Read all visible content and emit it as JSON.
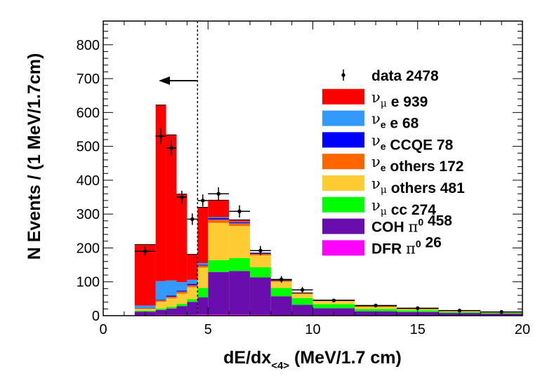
{
  "chart_data": {
    "type": "bar",
    "stacked": true,
    "xlabel_main": "dE/dx",
    "xlabel_sub": "<4>",
    "xlabel_unit": " (MeV/1.7 cm)",
    "ylabel": "N Events / (1 MeV/1.7cm)",
    "xlim": [
      0,
      20
    ],
    "ylim": [
      0,
      870
    ],
    "xticks": [
      0,
      5,
      10,
      15,
      20
    ],
    "yticks": [
      0,
      100,
      200,
      300,
      400,
      500,
      600,
      700,
      800
    ],
    "cut_x": 4.5,
    "bin_edges": [
      1.5,
      2.5,
      3.0,
      3.5,
      4.0,
      4.5,
      5.0,
      6.0,
      7.0,
      8.0,
      9.0,
      10.0,
      12.0,
      14.0,
      16.0,
      18.0,
      20.0
    ],
    "series": [
      {
        "key": "dfr",
        "color": "#ff00ff",
        "values": [
          2,
          3,
          3,
          3,
          3,
          4,
          4,
          4,
          3,
          2,
          2,
          2,
          1,
          1,
          1,
          1
        ]
      },
      {
        "key": "coh",
        "color": "#6a0dad",
        "values": [
          10,
          14,
          18,
          25,
          38,
          50,
          125,
          128,
          110,
          55,
          30,
          20,
          12,
          10,
          7,
          5
        ]
      },
      {
        "key": "numu_cc",
        "color": "#00ff00",
        "values": [
          3,
          4,
          5,
          7,
          8,
          28,
          35,
          38,
          30,
          25,
          20,
          12,
          7,
          5,
          3,
          2
        ]
      },
      {
        "key": "numu_other",
        "color": "#ffcc33",
        "values": [
          5,
          20,
          25,
          30,
          35,
          60,
          110,
          95,
          35,
          18,
          12,
          9,
          6,
          4,
          3,
          2
        ]
      },
      {
        "key": "nue_other",
        "color": "#ff6600",
        "values": [
          2,
          4,
          5,
          6,
          6,
          6,
          10,
          8,
          4,
          3,
          2,
          2,
          2,
          1,
          1,
          1
        ]
      },
      {
        "key": "nue_ccqe",
        "color": "#0000ff",
        "values": [
          1,
          2,
          3,
          3,
          4,
          2,
          4,
          3,
          2,
          1,
          1,
          1,
          1,
          0,
          0,
          0
        ]
      },
      {
        "key": "nue_e",
        "color": "#3399ff",
        "values": [
          7,
          55,
          45,
          25,
          12,
          5,
          3,
          2,
          1,
          1,
          0,
          0,
          0,
          0,
          0,
          0
        ]
      },
      {
        "key": "numu_e",
        "color": "#ff0000",
        "values": [
          180,
          520,
          430,
          260,
          75,
          165,
          50,
          5,
          0,
          0,
          0,
          0,
          0,
          0,
          0,
          0
        ]
      }
    ],
    "data_points": [
      {
        "x": 2.0,
        "y": 190,
        "xerr": 0.5,
        "yerr": 14
      },
      {
        "x": 2.75,
        "y": 530,
        "xerr": 0.25,
        "yerr": 23
      },
      {
        "x": 3.25,
        "y": 495,
        "xerr": 0.25,
        "yerr": 22
      },
      {
        "x": 3.75,
        "y": 350,
        "xerr": 0.25,
        "yerr": 19
      },
      {
        "x": 4.25,
        "y": 285,
        "xerr": 0.25,
        "yerr": 17
      },
      {
        "x": 4.75,
        "y": 340,
        "xerr": 0.25,
        "yerr": 18
      },
      {
        "x": 5.5,
        "y": 360,
        "xerr": 0.5,
        "yerr": 19
      },
      {
        "x": 6.5,
        "y": 308,
        "xerr": 0.5,
        "yerr": 18
      },
      {
        "x": 7.5,
        "y": 192,
        "xerr": 0.5,
        "yerr": 14
      },
      {
        "x": 8.5,
        "y": 107,
        "xerr": 0.5,
        "yerr": 10
      },
      {
        "x": 9.5,
        "y": 76,
        "xerr": 0.5,
        "yerr": 9
      },
      {
        "x": 11.0,
        "y": 45,
        "xerr": 1.0,
        "yerr": 5
      },
      {
        "x": 13.0,
        "y": 30,
        "xerr": 1.0,
        "yerr": 4
      },
      {
        "x": 15.0,
        "y": 22,
        "xerr": 1.0,
        "yerr": 3
      },
      {
        "x": 17.0,
        "y": 15,
        "xerr": 1.0,
        "yerr": 3
      },
      {
        "x": 19.0,
        "y": 11,
        "xerr": 1.0,
        "yerr": 2
      }
    ],
    "legend": [
      {
        "type": "marker",
        "parts": [
          {
            "t": "data   2478"
          }
        ]
      },
      {
        "type": "box",
        "color": "#ff0000",
        "parts": [
          {
            "t": "ν",
            "font": "serif"
          },
          {
            "t": "μ",
            "sub": true,
            "font": "serif"
          },
          {
            "t": " e   939"
          }
        ]
      },
      {
        "type": "box",
        "color": "#3399ff",
        "parts": [
          {
            "t": "ν",
            "font": "serif"
          },
          {
            "t": "e",
            "sub": true
          },
          {
            "t": " e   68"
          }
        ]
      },
      {
        "type": "box",
        "color": "#0000ff",
        "parts": [
          {
            "t": "ν",
            "font": "serif"
          },
          {
            "t": "e",
            "sub": true
          },
          {
            "t": " CCQE   78"
          }
        ]
      },
      {
        "type": "box",
        "color": "#ff6600",
        "parts": [
          {
            "t": "ν",
            "font": "serif"
          },
          {
            "t": "e",
            "sub": true
          },
          {
            "t": " others   172"
          }
        ]
      },
      {
        "type": "box",
        "color": "#ffcc33",
        "parts": [
          {
            "t": "ν",
            "font": "serif"
          },
          {
            "t": "μ",
            "sub": true,
            "font": "serif"
          },
          {
            "t": " others   481"
          }
        ]
      },
      {
        "type": "box",
        "color": "#00ff00",
        "parts": [
          {
            "t": "ν",
            "font": "serif"
          },
          {
            "t": "μ",
            "sub": true,
            "font": "serif"
          },
          {
            "t": " cc   274"
          }
        ]
      },
      {
        "type": "box",
        "color": "#6a0dad",
        "parts": [
          {
            "t": "COH  "
          },
          {
            "t": "π",
            "font": "serif"
          },
          {
            "t": "0",
            "sup": true
          },
          {
            "t": "   458"
          }
        ]
      },
      {
        "type": "box",
        "color": "#ff00ff",
        "parts": [
          {
            "t": "DFR  "
          },
          {
            "t": "π",
            "font": "serif"
          },
          {
            "t": "0",
            "sup": true
          },
          {
            "t": "   26"
          }
        ]
      }
    ]
  }
}
